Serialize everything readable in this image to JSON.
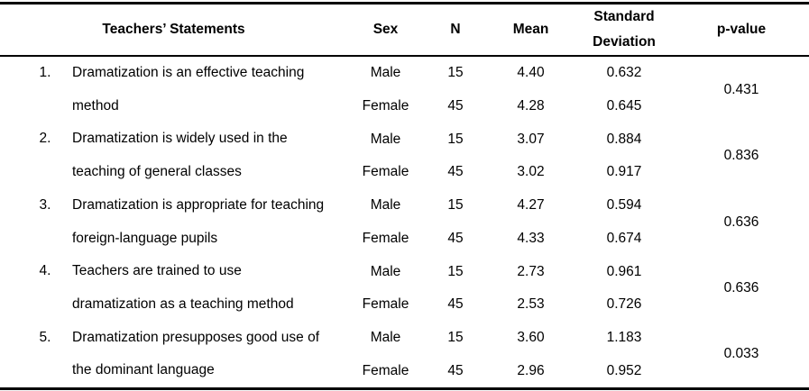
{
  "table": {
    "headers": {
      "statements": "Teachers’ Statements",
      "sex": "Sex",
      "n": "N",
      "mean": "Mean",
      "std_dev": "Standard\nDeviation",
      "p_value": "p-value"
    },
    "rows": [
      {
        "number": "1.",
        "statement": "Dramatization is an effective teaching\nmethod",
        "p_value": "0.431",
        "sub_rows": [
          {
            "sex": "Male",
            "n": "15",
            "mean": "4.40",
            "sd": "0.632"
          },
          {
            "sex": "Female",
            "n": "45",
            "mean": "4.28",
            "sd": "0.645"
          }
        ]
      },
      {
        "number": "2.",
        "statement": "Dramatization is widely used in the\nteaching of general classes",
        "p_value": "0.836",
        "sub_rows": [
          {
            "sex": "Male",
            "n": "15",
            "mean": "3.07",
            "sd": "0.884"
          },
          {
            "sex": "Female",
            "n": "45",
            "mean": "3.02",
            "sd": "0.917"
          }
        ]
      },
      {
        "number": "3.",
        "statement": "Dramatization is appropriate for teaching\nforeign-language pupils",
        "p_value": "0.636",
        "sub_rows": [
          {
            "sex": "Male",
            "n": "15",
            "mean": "4.27",
            "sd": "0.594"
          },
          {
            "sex": "Female",
            "n": "45",
            "mean": "4.33",
            "sd": "0.674"
          }
        ]
      },
      {
        "number": "4.",
        "statement": "Teachers are trained to use\ndramatization as a teaching method",
        "p_value": "0.636",
        "sub_rows": [
          {
            "sex": "Male",
            "n": "15",
            "mean": "2.73",
            "sd": "0.961"
          },
          {
            "sex": "Female",
            "n": "45",
            "mean": "2.53",
            "sd": "0.726"
          }
        ]
      },
      {
        "number": "5.",
        "statement": "Dramatization presupposes good use of\nthe dominant language",
        "p_value": "0.033",
        "sub_rows": [
          {
            "sex": "Male",
            "n": "15",
            "mean": "3.60",
            "sd": "1.183"
          },
          {
            "sex": "Female",
            "n": "45",
            "mean": "2.96",
            "sd": "0.952"
          }
        ]
      }
    ]
  }
}
